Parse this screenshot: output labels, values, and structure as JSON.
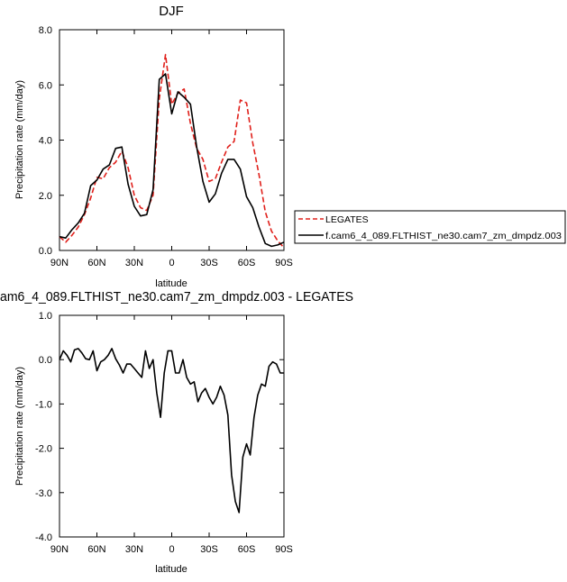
{
  "chart_data": [
    {
      "type": "line",
      "title": "DJF",
      "xlabel": "latitude",
      "ylabel": "Precipitation rate (mm/day)",
      "xlim": [
        -90,
        90
      ],
      "ylim": [
        0,
        8
      ],
      "xticks": [
        "90N",
        "60N",
        "30N",
        "0",
        "30S",
        "60S",
        "90S"
      ],
      "yticks": [
        "0.0",
        "2.0",
        "4.0",
        "6.0",
        "8.0"
      ],
      "legend_position": "right",
      "x": [
        -90,
        -85,
        -80,
        -75,
        -70,
        -65,
        -60,
        -55,
        -50,
        -45,
        -40,
        -35,
        -30,
        -25,
        -20,
        -15,
        -10,
        -5,
        0,
        5,
        10,
        15,
        20,
        25,
        30,
        35,
        40,
        45,
        50,
        55,
        60,
        65,
        70,
        75,
        80,
        85,
        90
      ],
      "series": [
        {
          "name": "LEGATES",
          "color": "#e0201b",
          "dash": true,
          "values": [
            0.5,
            0.3,
            0.55,
            0.85,
            1.3,
            1.9,
            2.65,
            2.6,
            3.0,
            3.2,
            3.6,
            3.0,
            2.0,
            1.55,
            1.45,
            2.0,
            5.5,
            7.1,
            5.3,
            5.7,
            5.85,
            4.6,
            3.7,
            3.3,
            2.5,
            2.6,
            3.2,
            3.75,
            3.95,
            5.45,
            5.35,
            3.9,
            2.75,
            1.4,
            0.7,
            0.35,
            0.1
          ]
        },
        {
          "name": "f.cam6_4_089.FLTHIST_ne30.cam7_zm_dmpdz.003",
          "color": "#000000",
          "dash": false,
          "values": [
            0.5,
            0.45,
            0.75,
            1.0,
            1.35,
            2.35,
            2.55,
            2.95,
            3.1,
            3.7,
            3.75,
            2.4,
            1.6,
            1.25,
            1.3,
            2.2,
            6.2,
            6.4,
            4.95,
            5.75,
            5.55,
            5.3,
            3.75,
            2.5,
            1.75,
            2.05,
            2.8,
            3.3,
            3.3,
            2.95,
            1.95,
            1.55,
            0.85,
            0.25,
            0.15,
            0.2,
            0.3
          ]
        }
      ]
    },
    {
      "type": "line",
      "title": "am6_4_089.FLTHIST_ne30.cam7_zm_dmpdz.003 - LEGATES",
      "xlabel": "latitude",
      "ylabel": "Precipitation rate (mm/day)",
      "xlim": [
        -90,
        90
      ],
      "ylim": [
        -4,
        1
      ],
      "xticks": [
        "90N",
        "60N",
        "30N",
        "0",
        "30S",
        "60S",
        "90S"
      ],
      "yticks": [
        "-4.0",
        "-3.0",
        "-2.0",
        "-1.0",
        "0.0",
        "1.0"
      ],
      "x": [
        -90,
        -87,
        -84,
        -81,
        -78,
        -75,
        -72,
        -69,
        -66,
        -63,
        -60,
        -57,
        -54,
        -51,
        -48,
        -45,
        -42,
        -39,
        -36,
        -33,
        -30,
        -27,
        -24,
        -21,
        -18,
        -15,
        -12,
        -9,
        -6,
        -3,
        0,
        3,
        6,
        9,
        12,
        15,
        18,
        21,
        24,
        27,
        30,
        33,
        36,
        39,
        42,
        45,
        48,
        51,
        54,
        57,
        60,
        63,
        66,
        69,
        72,
        75,
        78,
        81,
        84,
        87,
        90
      ],
      "series": [
        {
          "name": "",
          "color": "#000000",
          "dash": false,
          "values": [
            0.0,
            0.2,
            0.1,
            -0.05,
            0.22,
            0.25,
            0.15,
            0.02,
            0.0,
            0.2,
            -0.25,
            -0.05,
            0.0,
            0.1,
            0.25,
            0.02,
            -0.12,
            -0.3,
            -0.1,
            -0.1,
            -0.2,
            -0.3,
            -0.4,
            0.2,
            -0.2,
            0.0,
            -0.75,
            -1.3,
            -0.3,
            0.2,
            0.2,
            -0.3,
            -0.3,
            0.0,
            -0.4,
            -0.55,
            -0.5,
            -0.95,
            -0.75,
            -0.65,
            -0.85,
            -1.0,
            -0.85,
            -0.6,
            -0.8,
            -1.25,
            -2.6,
            -3.2,
            -3.45,
            -2.2,
            -1.9,
            -2.15,
            -1.3,
            -0.8,
            -0.55,
            -0.6,
            -0.15,
            -0.05,
            -0.1,
            -0.3,
            -0.3
          ]
        }
      ]
    }
  ]
}
